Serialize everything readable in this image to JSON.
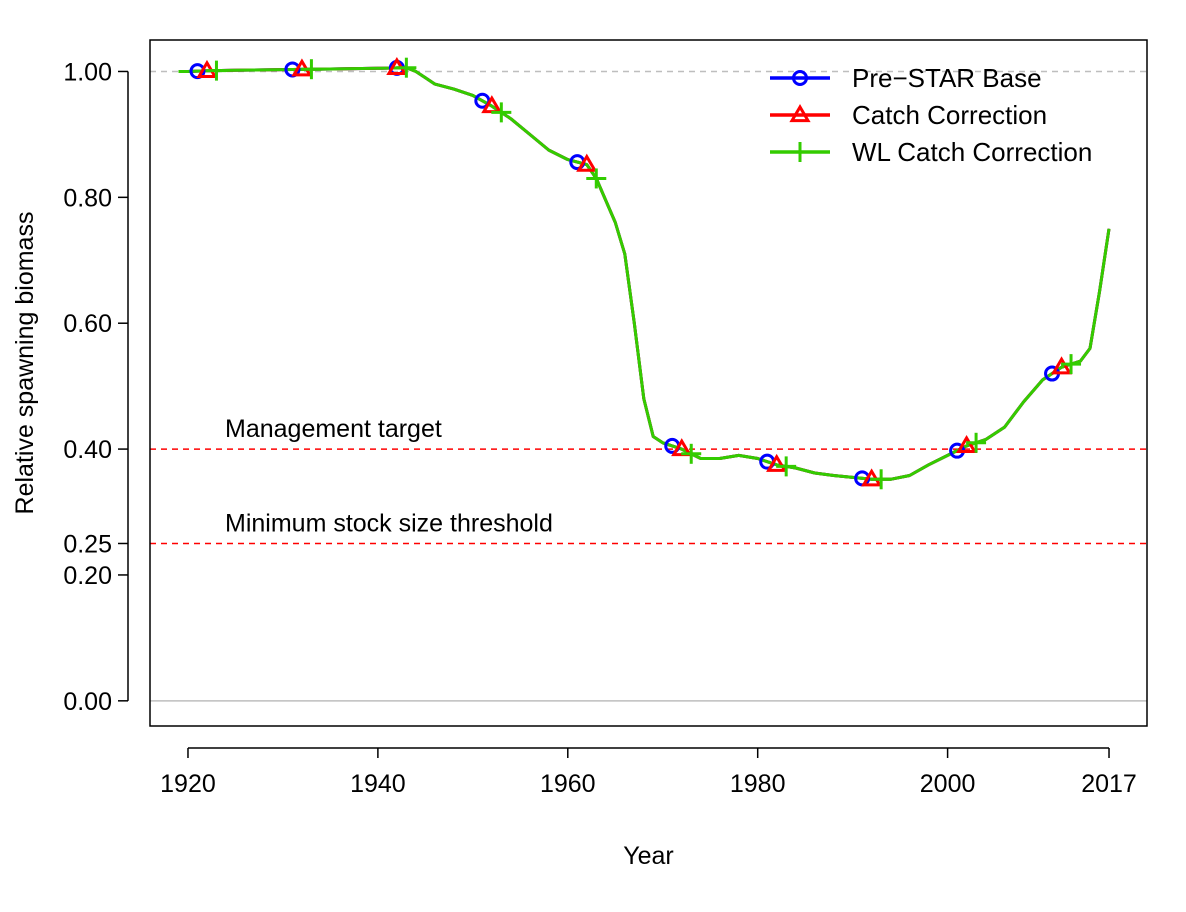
{
  "chart_data": {
    "type": "line",
    "xlabel": "Year",
    "ylabel": "Relative spawning biomass",
    "xlim": [
      1916,
      2021
    ],
    "ylim": [
      -0.04,
      1.05
    ],
    "x_ticks": [
      1920,
      1940,
      1960,
      1980,
      2000,
      2017
    ],
    "x_tick_labels": [
      "1920",
      "1940",
      "1960",
      "1980",
      "2000",
      "2017"
    ],
    "y_ticks": [
      0.0,
      0.2,
      0.25,
      0.4,
      0.6,
      0.8,
      1.0
    ],
    "y_tick_labels": [
      "0.00",
      "0.20",
      "0.25",
      "0.40",
      "0.60",
      "0.80",
      "1.00"
    ],
    "grid": false,
    "legend_position": "top-right",
    "reference_lines": [
      {
        "y": 1.0,
        "style": "dashed",
        "color": "#bebebe"
      },
      {
        "y": 0.4,
        "style": "dashed",
        "color": "#ff0000",
        "label": "Management target"
      },
      {
        "y": 0.25,
        "style": "dashed",
        "color": "#ff0000",
        "label": "Minimum stock size threshold"
      },
      {
        "y": 0.0,
        "style": "solid",
        "color": "#bebebe"
      }
    ],
    "x": [
      1919,
      1920,
      1922,
      1925,
      1930,
      1935,
      1940,
      1943,
      1944,
      1945,
      1946,
      1948,
      1950,
      1952,
      1954,
      1956,
      1958,
      1960,
      1962,
      1963,
      1964,
      1965,
      1966,
      1967,
      1968,
      1969,
      1970,
      1972,
      1974,
      1976,
      1978,
      1980,
      1982,
      1984,
      1986,
      1988,
      1990,
      1992,
      1994,
      1996,
      1998,
      2000,
      2002,
      2004,
      2006,
      2008,
      2010,
      2012,
      2014,
      2015,
      2016,
      2017
    ],
    "series": [
      {
        "name": "Pre−STAR Base",
        "color": "#0000ff",
        "marker": "circle",
        "marker_x": [
          1921,
          1931,
          1942,
          1951,
          1961,
          1971,
          1981,
          1991,
          2001,
          2011
        ],
        "y": [
          1.0,
          1.0,
          1.001,
          1.002,
          1.003,
          1.004,
          1.005,
          1.006,
          1.0,
          0.99,
          0.98,
          0.972,
          0.962,
          0.945,
          0.925,
          0.9,
          0.875,
          0.86,
          0.852,
          0.83,
          0.795,
          0.76,
          0.71,
          0.6,
          0.48,
          0.42,
          0.41,
          0.4,
          0.385,
          0.385,
          0.39,
          0.385,
          0.375,
          0.37,
          0.362,
          0.358,
          0.355,
          0.352,
          0.352,
          0.358,
          0.375,
          0.39,
          0.405,
          0.415,
          0.435,
          0.475,
          0.51,
          0.53,
          0.54,
          0.56,
          0.65,
          0.75
        ]
      },
      {
        "name": "Catch Correction",
        "color": "#ff0000",
        "marker": "triangle",
        "marker_x": [
          1922,
          1932,
          1942,
          1952,
          1962,
          1972,
          1982,
          1992,
          2002,
          2012
        ],
        "y": [
          1.0,
          1.0,
          1.001,
          1.002,
          1.003,
          1.004,
          1.005,
          1.006,
          1.0,
          0.99,
          0.98,
          0.972,
          0.962,
          0.945,
          0.925,
          0.9,
          0.875,
          0.86,
          0.852,
          0.83,
          0.795,
          0.76,
          0.71,
          0.6,
          0.48,
          0.42,
          0.41,
          0.4,
          0.385,
          0.385,
          0.39,
          0.385,
          0.375,
          0.37,
          0.362,
          0.358,
          0.355,
          0.352,
          0.352,
          0.358,
          0.375,
          0.39,
          0.405,
          0.415,
          0.435,
          0.475,
          0.51,
          0.53,
          0.54,
          0.56,
          0.65,
          0.75
        ]
      },
      {
        "name": "WL Catch Correction",
        "color": "#33cc00",
        "marker": "plus",
        "marker_x": [
          1923,
          1933,
          1943,
          1953,
          1963,
          1973,
          1983,
          1993,
          2003,
          2013
        ],
        "y": [
          1.0,
          1.0,
          1.001,
          1.002,
          1.003,
          1.004,
          1.005,
          1.006,
          1.0,
          0.99,
          0.98,
          0.972,
          0.962,
          0.945,
          0.925,
          0.9,
          0.875,
          0.86,
          0.852,
          0.83,
          0.795,
          0.76,
          0.71,
          0.6,
          0.48,
          0.42,
          0.41,
          0.4,
          0.385,
          0.385,
          0.39,
          0.385,
          0.375,
          0.37,
          0.362,
          0.358,
          0.355,
          0.352,
          0.352,
          0.358,
          0.375,
          0.39,
          0.405,
          0.415,
          0.435,
          0.475,
          0.51,
          0.53,
          0.54,
          0.56,
          0.65,
          0.75
        ]
      }
    ]
  }
}
